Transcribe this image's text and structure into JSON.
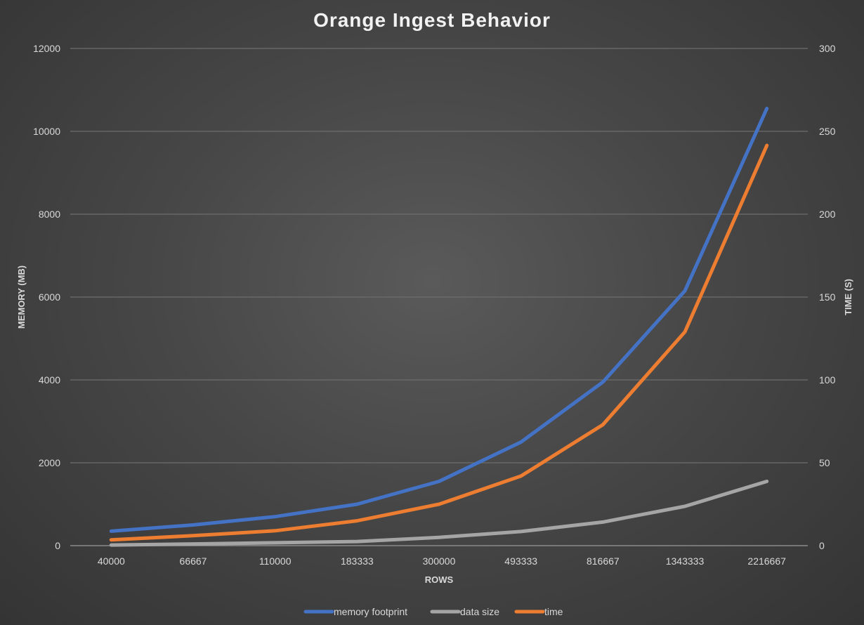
{
  "chart_data": {
    "type": "line",
    "title": "Orange Ingest Behavior",
    "xlabel": "ROWS",
    "ylabel": "MEMORY (MB)",
    "y2label": "TIME (S)",
    "categories": [
      "40000",
      "66667",
      "110000",
      "183333",
      "300000",
      "493333",
      "816667",
      "1343333",
      "2216667"
    ],
    "ylim": [
      0,
      12000
    ],
    "y_ticks": [
      0,
      2000,
      4000,
      6000,
      8000,
      10000,
      12000
    ],
    "y2lim": [
      0,
      300
    ],
    "y2_ticks": [
      0,
      50,
      100,
      150,
      200,
      250,
      300
    ],
    "grid": true,
    "legend_position": "bottom",
    "series": [
      {
        "name": "memory footprint",
        "axis": "left",
        "color": "#4472C4",
        "values": [
          350,
          500,
          700,
          1000,
          1550,
          2500,
          3950,
          6150,
          10550
        ]
      },
      {
        "name": "data size",
        "axis": "left",
        "color": "#A5A5A5",
        "values": [
          15,
          40,
          70,
          100,
          200,
          340,
          570,
          950,
          1550
        ]
      },
      {
        "name": "time",
        "axis": "right",
        "color": "#ED7D31",
        "values": [
          3.5,
          6,
          9,
          15,
          25,
          42,
          73,
          129,
          241.5
        ]
      }
    ]
  }
}
